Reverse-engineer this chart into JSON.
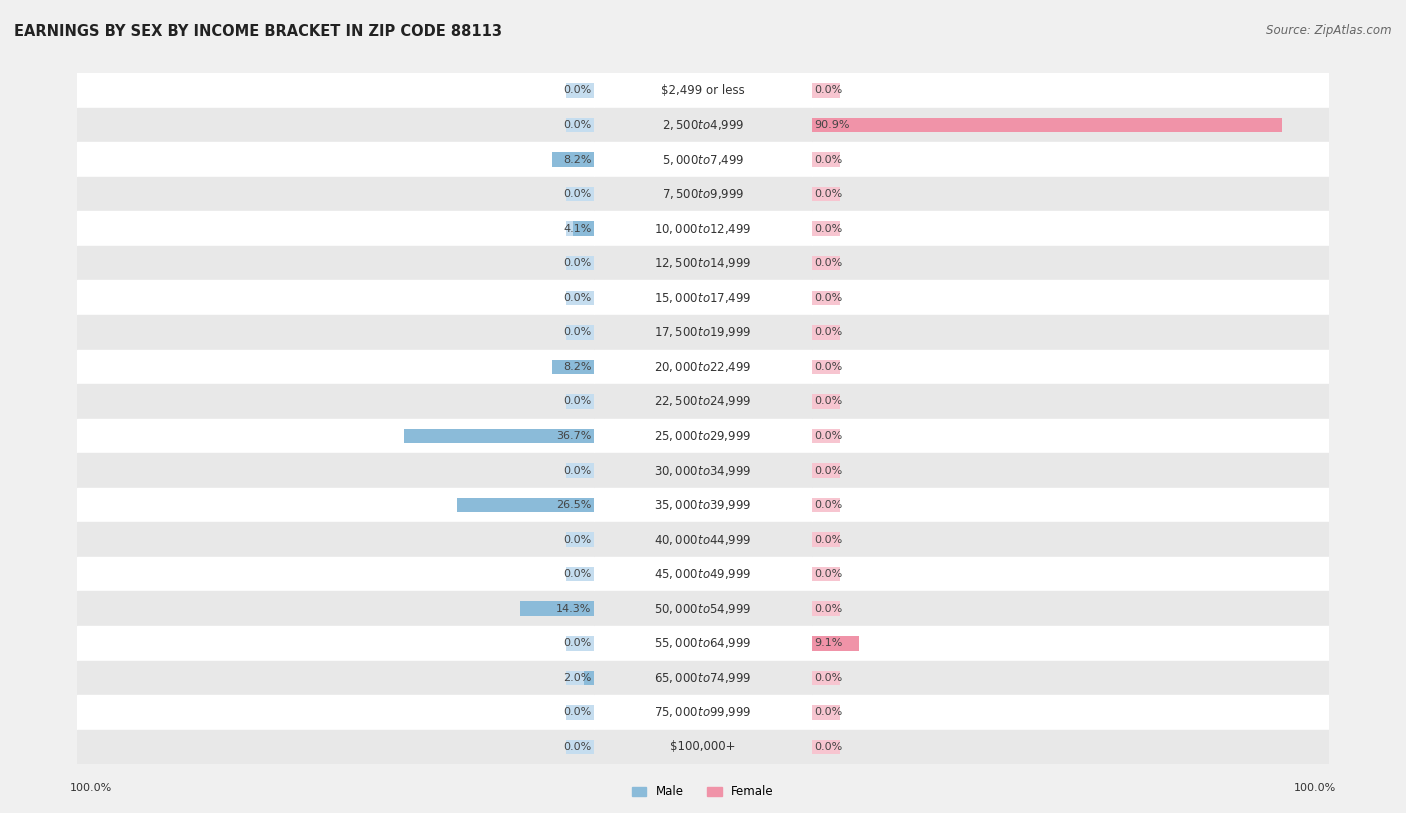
{
  "title": "EARNINGS BY SEX BY INCOME BRACKET IN ZIP CODE 88113",
  "source": "Source: ZipAtlas.com",
  "categories": [
    "$2,499 or less",
    "$2,500 to $4,999",
    "$5,000 to $7,499",
    "$7,500 to $9,999",
    "$10,000 to $12,499",
    "$12,500 to $14,999",
    "$15,000 to $17,499",
    "$17,500 to $19,999",
    "$20,000 to $22,499",
    "$22,500 to $24,999",
    "$25,000 to $29,999",
    "$30,000 to $34,999",
    "$35,000 to $39,999",
    "$40,000 to $44,999",
    "$45,000 to $49,999",
    "$50,000 to $54,999",
    "$55,000 to $64,999",
    "$65,000 to $74,999",
    "$75,000 to $99,999",
    "$100,000+"
  ],
  "male_values": [
    0.0,
    0.0,
    8.2,
    0.0,
    4.1,
    0.0,
    0.0,
    0.0,
    8.2,
    0.0,
    36.7,
    0.0,
    26.5,
    0.0,
    0.0,
    14.3,
    0.0,
    2.0,
    0.0,
    0.0
  ],
  "female_values": [
    0.0,
    90.9,
    0.0,
    0.0,
    0.0,
    0.0,
    0.0,
    0.0,
    0.0,
    0.0,
    0.0,
    0.0,
    0.0,
    0.0,
    0.0,
    0.0,
    9.1,
    0.0,
    0.0,
    0.0
  ],
  "male_color": "#8bbbd9",
  "male_color_light": "#c5ddef",
  "female_color": "#f093a8",
  "female_color_light": "#f7c5d0",
  "male_label": "Male",
  "female_label": "Female",
  "axis_max": 100.0,
  "min_bar_pct": 5.5,
  "bg_color": "#f0f0f0",
  "row_white": "#ffffff",
  "row_gray": "#e8e8e8",
  "title_fontsize": 10.5,
  "source_fontsize": 8.5,
  "label_fontsize": 8.0,
  "cat_fontsize": 8.5,
  "tick_fontsize": 8.0
}
